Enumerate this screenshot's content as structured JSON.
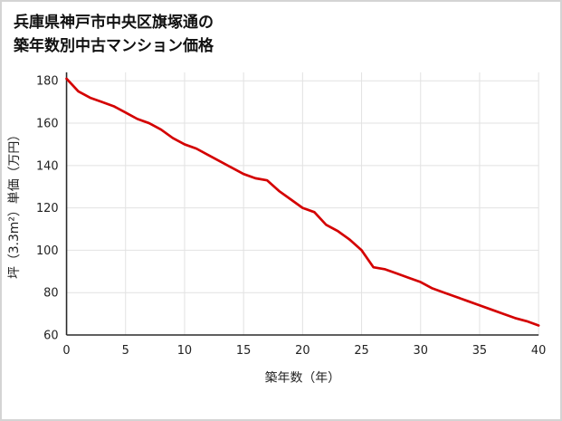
{
  "title": {
    "line1": "兵庫県神戸市中央区旗塚通の",
    "line2": "築年数別中古マンション価格"
  },
  "chart_data": {
    "type": "line",
    "title": "兵庫県神戸市中央区旗塚通の築年数別中古マンション価格",
    "xlabel": "築年数（年）",
    "ylabel": "坪（3.3m²）単価（万円）",
    "x": [
      0,
      1,
      2,
      3,
      4,
      5,
      6,
      7,
      8,
      9,
      10,
      11,
      12,
      13,
      14,
      15,
      16,
      17,
      18,
      19,
      20,
      21,
      22,
      23,
      24,
      25,
      26,
      27,
      28,
      29,
      30,
      31,
      32,
      33,
      34,
      35,
      36,
      37,
      38,
      39,
      40
    ],
    "values": [
      181,
      175,
      172,
      170,
      168,
      165,
      162,
      160,
      157,
      153,
      150,
      148,
      145,
      142,
      139,
      136,
      134,
      133,
      128,
      124,
      120,
      118,
      112,
      109,
      105,
      100,
      92,
      91,
      89,
      87,
      85,
      82,
      80,
      78,
      76,
      74,
      72,
      70,
      68,
      66.5,
      64.5
    ],
    "xticks": [
      0,
      5,
      10,
      15,
      20,
      25,
      30,
      35,
      40
    ],
    "yticks": [
      60,
      80,
      100,
      120,
      140,
      160,
      180
    ],
    "xlim": [
      0,
      40
    ],
    "ylim": [
      60,
      184
    ],
    "grid": true,
    "legend": "none",
    "line_color": "#d40000",
    "axis_color": "#2a2a2a",
    "grid_color": "#e2e2e2",
    "tick_text_color": "#222222"
  }
}
